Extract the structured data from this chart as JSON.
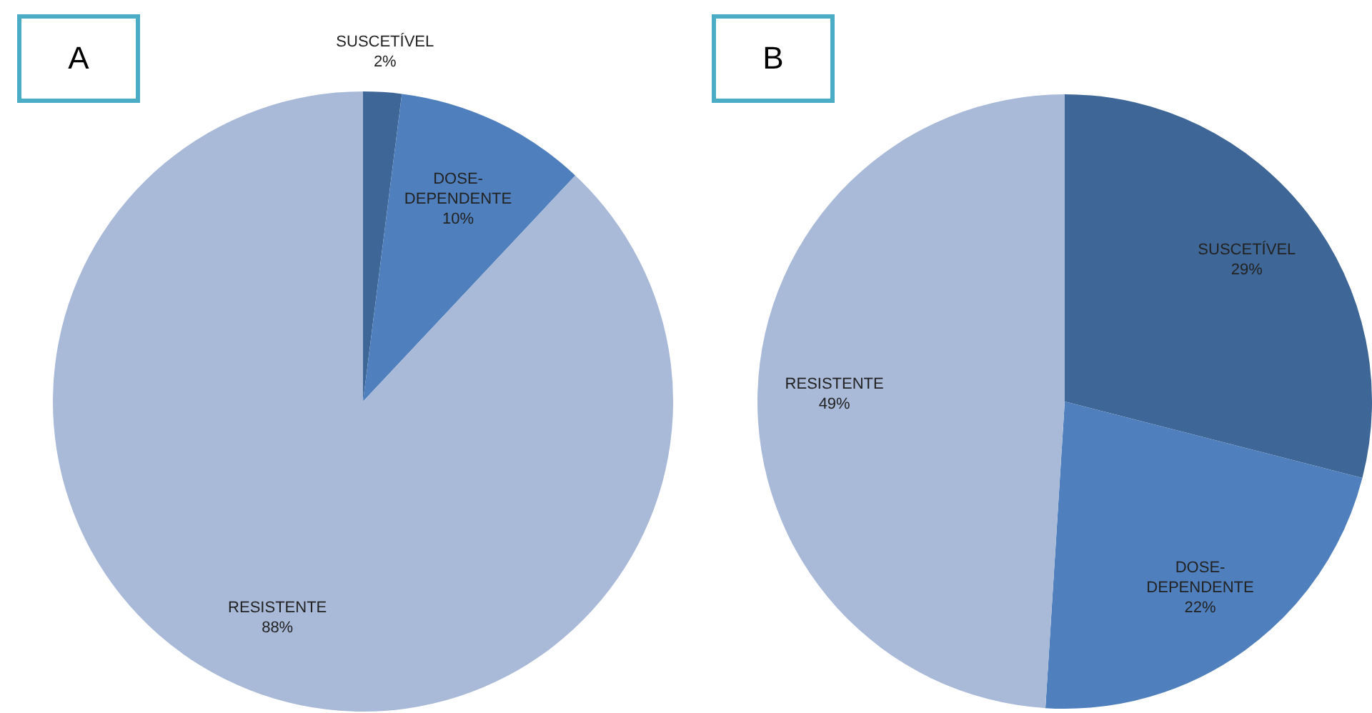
{
  "chart_data": [
    {
      "type": "pie",
      "title": "A",
      "categories": [
        "SUSCETÍVEL",
        "DOSE-DEPENDENTE",
        "RESISTENTE"
      ],
      "values": [
        2,
        10,
        88
      ],
      "value_labels": [
        "2%",
        "10%",
        "88%"
      ],
      "colors": [
        "#3e6696",
        "#4f80bd",
        "#a9b9d8"
      ]
    },
    {
      "type": "pie",
      "title": "B",
      "categories": [
        "SUSCETÍVEL",
        "DOSE-DEPENDENTE",
        "RESISTENTE"
      ],
      "values": [
        29,
        22,
        49
      ],
      "value_labels": [
        "29%",
        "22%",
        "49%"
      ],
      "colors": [
        "#3e6696",
        "#4f80bd",
        "#a9b9d8"
      ]
    }
  ]
}
